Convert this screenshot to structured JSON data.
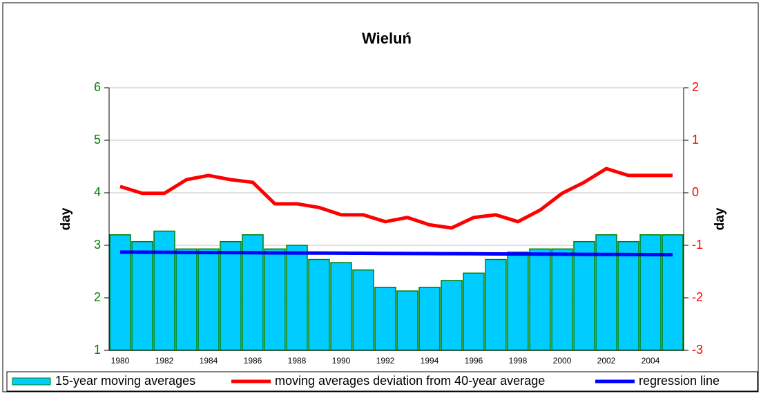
{
  "chart_data": {
    "type": "bar",
    "title": "Wieluń",
    "y_label": "day",
    "y2_label": "day",
    "categories": [
      "1980",
      null,
      "1982",
      null,
      "1984",
      null,
      "1986",
      null,
      "1988",
      null,
      "1990",
      null,
      "1992",
      null,
      "1994",
      null,
      "1996",
      null,
      "1998",
      null,
      "2000",
      null,
      "2002",
      null,
      "2004",
      null
    ],
    "ylim": [
      1,
      6
    ],
    "yticks": [
      1,
      2,
      3,
      4,
      5,
      6
    ],
    "y2lim": [
      -3,
      2
    ],
    "y2ticks": [
      -3,
      -2,
      -1,
      0,
      1,
      2
    ],
    "grid": true,
    "legend": "bottom",
    "series": [
      {
        "name": "15-year moving averages",
        "type": "bar",
        "color": "#00ccff",
        "edge_color": "#008000",
        "values": [
          3.2,
          3.07,
          3.27,
          2.93,
          2.93,
          3.07,
          3.2,
          2.93,
          3.0,
          2.73,
          2.67,
          2.53,
          2.2,
          2.13,
          2.2,
          2.33,
          2.47,
          2.73,
          2.87,
          2.93,
          2.93,
          3.07,
          3.2,
          3.07,
          3.2,
          3.2
        ]
      },
      {
        "name": "moving averages deviation from 40-year average",
        "type": "line",
        "axis": "y2",
        "color": "#ff0000",
        "values": [
          0.12,
          -0.01,
          -0.01,
          0.25,
          0.33,
          0.25,
          0.2,
          -0.21,
          -0.21,
          -0.28,
          -0.42,
          -0.42,
          -0.55,
          -0.47,
          -0.61,
          -0.67,
          -0.47,
          -0.42,
          -0.55,
          -0.33,
          -0.01,
          0.2,
          0.46,
          0.33,
          0.33,
          0.33
        ]
      },
      {
        "name": "regression line",
        "type": "line",
        "color": "#0000ff",
        "values": [
          2.87,
          2.868,
          2.866,
          2.864,
          2.862,
          2.86,
          2.858,
          2.856,
          2.854,
          2.852,
          2.85,
          2.848,
          2.846,
          2.844,
          2.842,
          2.84,
          2.838,
          2.836,
          2.834,
          2.832,
          2.83,
          2.828,
          2.826,
          2.824,
          2.822,
          2.82
        ]
      }
    ]
  }
}
